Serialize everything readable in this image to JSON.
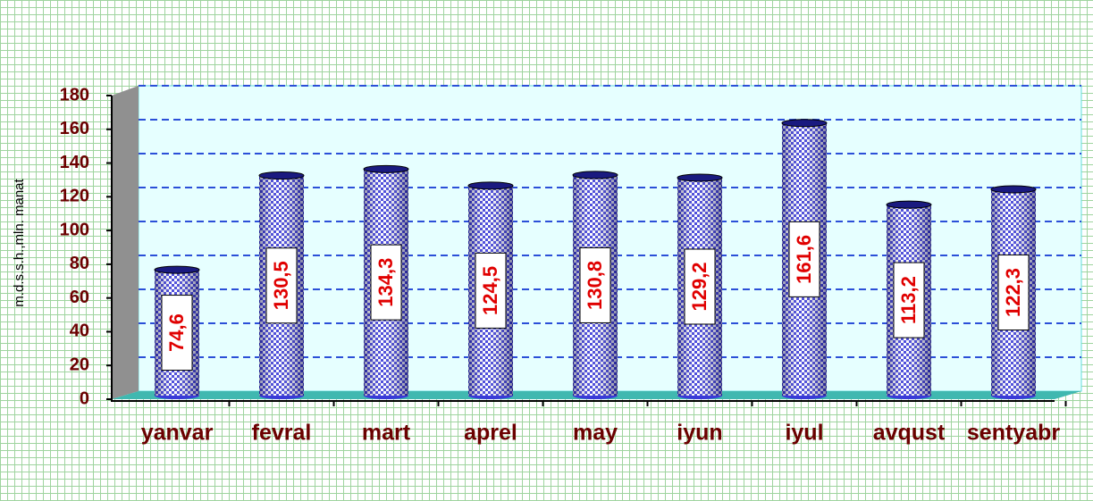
{
  "chart_data": {
    "type": "bar",
    "ylabel": "m.d.s.s.h.,mln. manat",
    "categories": [
      "yanvar",
      "fevral",
      "mart",
      "aprel",
      "may",
      "iyun",
      "iyul",
      "avqust",
      "sentyabr"
    ],
    "values": [
      74.6,
      130.5,
      134.3,
      124.5,
      130.8,
      129.2,
      161.6,
      113.2,
      122.3
    ],
    "value_labels": [
      "74,6",
      "130,5",
      "134,3",
      "124,5",
      "130,8",
      "129,2",
      "161,6",
      "113,2",
      "122,3"
    ],
    "color": "#3a3ad8",
    "ylim": [
      0,
      180
    ],
    "yticks": [
      0,
      20,
      40,
      60,
      80,
      100,
      120,
      140,
      160,
      180
    ],
    "grid": true
  }
}
